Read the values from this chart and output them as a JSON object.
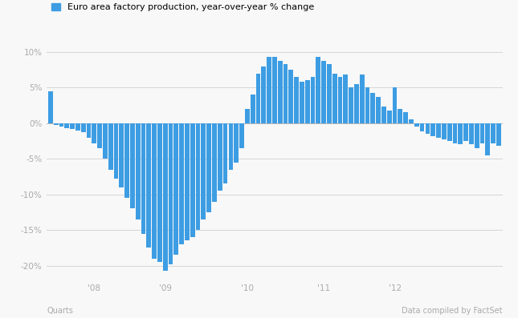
{
  "title": "Euro area factory production, year-over-year % change",
  "bar_color": "#3d9de3",
  "background_color": "#f8f8f8",
  "xlabel_left": "Quarts",
  "xlabel_right": "Data compiled by FactSet",
  "ylim": [
    -22,
    11.5
  ],
  "yticks": [
    -20,
    -15,
    -10,
    -5,
    0,
    5,
    10
  ],
  "ytick_labels": [
    "-20%",
    "-15%",
    "-10%",
    "-5%",
    "0%",
    "5%",
    "10%"
  ],
  "values": [
    4.5,
    -0.2,
    -0.5,
    -0.7,
    -0.8,
    -1.0,
    -1.3,
    -2.0,
    -2.8,
    -3.5,
    -5.0,
    -6.5,
    -7.8,
    -9.0,
    -10.5,
    -12.0,
    -13.5,
    -15.5,
    -17.5,
    -19.0,
    -19.5,
    -20.7,
    -19.8,
    -18.5,
    -17.0,
    -16.5,
    -16.0,
    -15.0,
    -13.5,
    -12.5,
    -11.0,
    -9.5,
    -8.5,
    -6.5,
    -5.5,
    -3.5,
    2.0,
    4.0,
    7.0,
    8.0,
    9.3,
    9.3,
    8.8,
    8.3,
    7.5,
    6.5,
    5.8,
    6.0,
    6.5,
    9.3,
    8.8,
    8.3,
    7.0,
    6.5,
    6.8,
    5.0,
    5.5,
    6.8,
    5.0,
    4.2,
    3.7,
    2.3,
    1.8,
    5.0,
    2.0,
    1.5,
    0.5,
    -0.5,
    -1.2,
    -1.5,
    -1.8,
    -2.0,
    -2.3,
    -2.5,
    -2.8,
    -3.0,
    -2.5,
    -3.0,
    -3.5,
    -2.8,
    -4.5,
    -2.8,
    -3.2
  ],
  "xtick_positions": [
    8,
    21,
    36,
    50,
    63
  ],
  "xtick_labels": [
    "'08",
    "'09",
    "'10",
    "'11",
    "'12"
  ],
  "grid_color": "#d5d5d5",
  "legend_color": "#3d9de3"
}
